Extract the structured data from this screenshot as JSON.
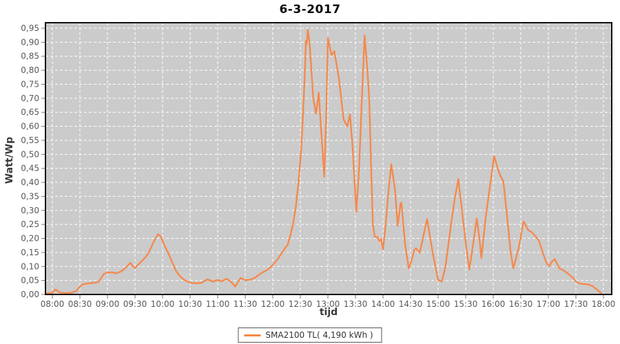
{
  "title": "6-3-2017",
  "axis": {
    "y_title": "Watt/Wp",
    "x_title": "tijd"
  },
  "legend": {
    "label": "SMA2100 TL( 4,190 kWh )"
  },
  "colors": {
    "line": "#f5884b",
    "plot_bg": "#cbcbcb",
    "grid": "#ffffff",
    "plot_border": "#111111",
    "tick": "#777777",
    "tick_text": "#585858",
    "page_bg": "#ffffff"
  },
  "chart_data": {
    "type": "line",
    "title": "6-3-2017",
    "xlabel": "tijd",
    "ylabel": "Watt/Wp",
    "ylim": [
      0,
      0.95
    ],
    "x_range": [
      "08:00",
      "18:00"
    ],
    "grid": "white dashed, on",
    "legend_position": "bottom-center",
    "x_ticks": [
      "08:00",
      "08:30",
      "09:00",
      "09:30",
      "10:00",
      "10:30",
      "11:00",
      "11:30",
      "12:00",
      "12:30",
      "13:00",
      "13:30",
      "14:00",
      "14:30",
      "15:00",
      "15:30",
      "16:00",
      "16:30",
      "17:00",
      "17:30",
      "18:00"
    ],
    "y_ticks": [
      {
        "v": 0.0,
        "label": "0,00"
      },
      {
        "v": 0.05,
        "label": "0,05"
      },
      {
        "v": 0.1,
        "label": "0,10"
      },
      {
        "v": 0.15,
        "label": "0,15"
      },
      {
        "v": 0.2,
        "label": "0,20"
      },
      {
        "v": 0.25,
        "label": "0,25"
      },
      {
        "v": 0.3,
        "label": "0,30"
      },
      {
        "v": 0.35,
        "label": "0,35"
      },
      {
        "v": 0.4,
        "label": "0,40"
      },
      {
        "v": 0.45,
        "label": "0,45"
      },
      {
        "v": 0.5,
        "label": "0,50"
      },
      {
        "v": 0.55,
        "label": "0,55"
      },
      {
        "v": 0.6,
        "label": "0,60"
      },
      {
        "v": 0.65,
        "label": "0,65"
      },
      {
        "v": 0.7,
        "label": "0,70"
      },
      {
        "v": 0.75,
        "label": "0,75"
      },
      {
        "v": 0.8,
        "label": "0,80"
      },
      {
        "v": 0.85,
        "label": "0,85"
      },
      {
        "v": 0.9,
        "label": "0,90"
      },
      {
        "v": 0.95,
        "label": "0,95"
      }
    ],
    "series": [
      {
        "name": "SMA2100 TL( 4,190 kWh )",
        "color": "#f5884b",
        "points": [
          [
            "07:53",
            0.004
          ],
          [
            "08:00",
            0.006
          ],
          [
            "08:03",
            0.018
          ],
          [
            "08:05",
            0.014
          ],
          [
            "08:08",
            0.007
          ],
          [
            "08:14",
            0.005
          ],
          [
            "08:20",
            0.006
          ],
          [
            "08:26",
            0.012
          ],
          [
            "08:30",
            0.028
          ],
          [
            "08:33",
            0.036
          ],
          [
            "08:38",
            0.039
          ],
          [
            "08:44",
            0.041
          ],
          [
            "08:50",
            0.044
          ],
          [
            "08:53",
            0.058
          ],
          [
            "08:56",
            0.073
          ],
          [
            "09:00",
            0.078
          ],
          [
            "09:05",
            0.079
          ],
          [
            "09:09",
            0.075
          ],
          [
            "09:14",
            0.081
          ],
          [
            "09:18",
            0.09
          ],
          [
            "09:22",
            0.102
          ],
          [
            "09:25",
            0.113
          ],
          [
            "09:28",
            0.1
          ],
          [
            "09:30",
            0.094
          ],
          [
            "09:34",
            0.108
          ],
          [
            "09:37",
            0.118
          ],
          [
            "09:41",
            0.131
          ],
          [
            "09:45",
            0.15
          ],
          [
            "09:50",
            0.186
          ],
          [
            "09:55",
            0.215
          ],
          [
            "09:58",
            0.208
          ],
          [
            "10:02",
            0.175
          ],
          [
            "10:07",
            0.142
          ],
          [
            "10:10",
            0.118
          ],
          [
            "10:15",
            0.082
          ],
          [
            "10:19",
            0.065
          ],
          [
            "10:24",
            0.051
          ],
          [
            "10:30",
            0.042
          ],
          [
            "10:36",
            0.04
          ],
          [
            "10:42",
            0.041
          ],
          [
            "10:49",
            0.054
          ],
          [
            "10:55",
            0.046
          ],
          [
            "11:00",
            0.052
          ],
          [
            "11:04",
            0.047
          ],
          [
            "11:10",
            0.056
          ],
          [
            "11:15",
            0.044
          ],
          [
            "11:19",
            0.028
          ],
          [
            "11:25",
            0.059
          ],
          [
            "11:30",
            0.051
          ],
          [
            "11:36",
            0.053
          ],
          [
            "11:41",
            0.061
          ],
          [
            "11:48",
            0.077
          ],
          [
            "11:54",
            0.088
          ],
          [
            "12:00",
            0.105
          ],
          [
            "12:05",
            0.125
          ],
          [
            "12:10",
            0.148
          ],
          [
            "12:14",
            0.169
          ],
          [
            "12:16",
            0.175
          ],
          [
            "12:19",
            0.21
          ],
          [
            "12:22",
            0.25
          ],
          [
            "12:25",
            0.31
          ],
          [
            "12:28",
            0.4
          ],
          [
            "12:31",
            0.52
          ],
          [
            "12:33",
            0.65
          ],
          [
            "12:35",
            0.8
          ],
          [
            "12:36",
            0.905
          ],
          [
            "12:37",
            0.893
          ],
          [
            "12:38",
            0.945
          ],
          [
            "12:40",
            0.9
          ],
          [
            "12:42",
            0.8
          ],
          [
            "12:44",
            0.7
          ],
          [
            "12:47",
            0.645
          ],
          [
            "12:50",
            0.72
          ],
          [
            "12:52",
            0.62
          ],
          [
            "12:56",
            0.42
          ],
          [
            "12:58",
            0.62
          ],
          [
            "13:00",
            0.915
          ],
          [
            "13:04",
            0.854
          ],
          [
            "13:07",
            0.868
          ],
          [
            "13:12",
            0.77
          ],
          [
            "13:17",
            0.625
          ],
          [
            "13:21",
            0.6
          ],
          [
            "13:24",
            0.643
          ],
          [
            "13:27",
            0.52
          ],
          [
            "13:31",
            0.294
          ],
          [
            "13:34",
            0.45
          ],
          [
            "13:37",
            0.7
          ],
          [
            "13:40",
            0.924
          ],
          [
            "13:43",
            0.8
          ],
          [
            "13:45",
            0.7
          ],
          [
            "13:47",
            0.45
          ],
          [
            "13:49",
            0.25
          ],
          [
            "13:51",
            0.205
          ],
          [
            "13:54",
            0.205
          ],
          [
            "13:56",
            0.191
          ],
          [
            "13:58",
            0.198
          ],
          [
            "14:00",
            0.161
          ],
          [
            "14:03",
            0.253
          ],
          [
            "14:06",
            0.37
          ],
          [
            "14:09",
            0.465
          ],
          [
            "14:13",
            0.375
          ],
          [
            "14:16",
            0.245
          ],
          [
            "14:19",
            0.322
          ],
          [
            "14:20",
            0.328
          ],
          [
            "14:24",
            0.18
          ],
          [
            "14:28",
            0.093
          ],
          [
            "14:31",
            0.12
          ],
          [
            "14:34",
            0.159
          ],
          [
            "14:36",
            0.165
          ],
          [
            "14:40",
            0.149
          ],
          [
            "14:44",
            0.21
          ],
          [
            "14:48",
            0.269
          ],
          [
            "14:54",
            0.15
          ],
          [
            "15:00",
            0.052
          ],
          [
            "15:04",
            0.046
          ],
          [
            "15:08",
            0.1
          ],
          [
            "15:14",
            0.25
          ],
          [
            "15:18",
            0.34
          ],
          [
            "15:22",
            0.412
          ],
          [
            "15:27",
            0.27
          ],
          [
            "15:31",
            0.16
          ],
          [
            "15:34",
            0.089
          ],
          [
            "15:39",
            0.2
          ],
          [
            "15:42",
            0.271
          ],
          [
            "15:45",
            0.2
          ],
          [
            "15:47",
            0.13
          ],
          [
            "15:52",
            0.28
          ],
          [
            "15:57",
            0.4
          ],
          [
            "16:01",
            0.494
          ],
          [
            "16:04",
            0.46
          ],
          [
            "16:07",
            0.429
          ],
          [
            "16:11",
            0.404
          ],
          [
            "16:16",
            0.25
          ],
          [
            "16:19",
            0.15
          ],
          [
            "16:22",
            0.093
          ],
          [
            "16:28",
            0.17
          ],
          [
            "16:33",
            0.261
          ],
          [
            "16:38",
            0.23
          ],
          [
            "16:42",
            0.222
          ],
          [
            "16:46",
            0.208
          ],
          [
            "16:50",
            0.19
          ],
          [
            "16:55",
            0.14
          ],
          [
            "16:58",
            0.112
          ],
          [
            "17:01",
            0.101
          ],
          [
            "17:04",
            0.118
          ],
          [
            "17:07",
            0.126
          ],
          [
            "17:12",
            0.093
          ],
          [
            "17:17",
            0.085
          ],
          [
            "17:22",
            0.073
          ],
          [
            "17:27",
            0.058
          ],
          [
            "17:31",
            0.044
          ],
          [
            "17:35",
            0.038
          ],
          [
            "17:43",
            0.036
          ],
          [
            "17:48",
            0.03
          ],
          [
            "17:52",
            0.02
          ],
          [
            "17:55",
            0.012
          ],
          [
            "17:58",
            0.003
          ]
        ]
      }
    ]
  }
}
